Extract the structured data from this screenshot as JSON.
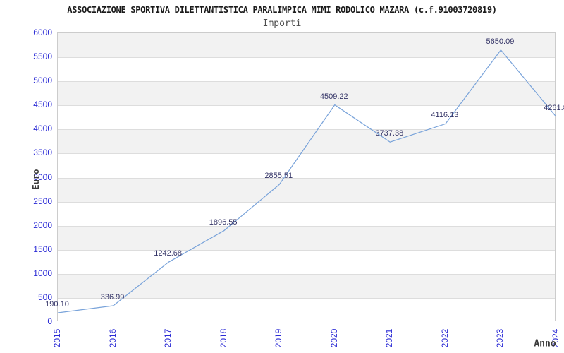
{
  "page": {
    "title": "ASSOCIAZIONE SPORTIVA DILETTANTISTICA PARALIMPICA MIMI RODOLICO MAZARA (c.f.91003720819)",
    "subtitle": "Importi"
  },
  "chart_data": {
    "type": "line",
    "title": "ASSOCIAZIONE SPORTIVA DILETTANTISTICA PARALIMPICA MIMI RODOLICO MAZARA (c.f.91003720819)",
    "subtitle": "Importi",
    "xlabel": "Anno",
    "ylabel": "Euro",
    "categories": [
      "2015",
      "2016",
      "2017",
      "2018",
      "2019",
      "2020",
      "2021",
      "2022",
      "2023",
      "2024"
    ],
    "values": [
      190.1,
      336.99,
      1242.68,
      1896.55,
      2855.51,
      4509.22,
      3737.38,
      4116.13,
      5650.09,
      4261.8
    ],
    "point_labels": [
      "190.10",
      "336.99",
      "1242.68",
      "1896.55",
      "2855.51",
      "4509.22",
      "3737.38",
      "4116.13",
      "5650.09",
      "4261.8"
    ],
    "ylim": [
      0,
      6000
    ],
    "y_tick_step": 500,
    "legend": "none",
    "grid": "horizontal-alternating-bands",
    "colors": {
      "line": "#79a3da",
      "tick_label": "#2b2bd5",
      "point_label": "#333366",
      "band_gray": "#f2f2f2",
      "grid_line": "#dddddd",
      "plot_border": "#cccccc",
      "title": "#1a1a1a",
      "subtitle": "#4d4d4d",
      "axis_title": "#3b3b3b",
      "background": "#ffffff"
    }
  }
}
